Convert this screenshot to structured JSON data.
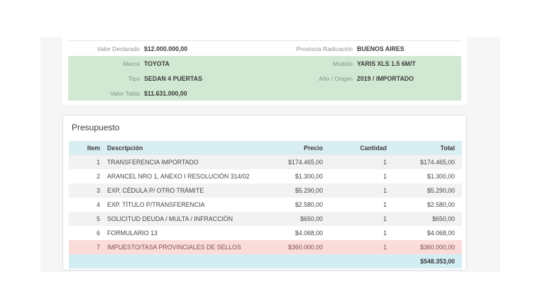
{
  "info_panel": {
    "rows": [
      {
        "left_label": "Valor Declarado",
        "left_value": "$12.000.000,00",
        "right_label": "Provincia Radicación",
        "right_value": "BUENOS AIRES",
        "variant": "white"
      },
      {
        "left_label": "Marca",
        "left_value": "TOYOTA",
        "right_label": "Modelo",
        "right_value": "YARIS XLS 1.5 6M/T",
        "variant": "green"
      },
      {
        "left_label": "Tipo",
        "left_value": "SEDAN 4 PUERTAS",
        "right_label": "Año / Origen",
        "right_value": "2019 / IMPORTADO",
        "variant": "green"
      },
      {
        "left_label": "Valor Tabla",
        "left_value": "$11.631.000,00",
        "right_label": "",
        "right_value": "",
        "variant": "green"
      }
    ]
  },
  "budget": {
    "title": "Presupuesto",
    "columns": [
      "Item",
      "Descripción",
      "Precio",
      "Cantidad",
      "Total"
    ],
    "rows": [
      {
        "item": "1",
        "description": "TRANSFERENCIA IMPORTADO",
        "price": "$174.465,00",
        "quantity": "1",
        "total": "$174.465,00",
        "variant": "stripe"
      },
      {
        "item": "2",
        "description": "ARANCEL NRO 1, ANEXO I RESOLUCIÓN 314/02",
        "price": "$1.300,00",
        "quantity": "1",
        "total": "$1.300,00",
        "variant": "plain"
      },
      {
        "item": "3",
        "description": "EXP. CÉDULA P/ OTRO TRÁMITE",
        "price": "$5.290,00",
        "quantity": "1",
        "total": "$5.290,00",
        "variant": "stripe"
      },
      {
        "item": "4",
        "description": "EXP. TÍTULO P/TRANSFERENCIA",
        "price": "$2.580,00",
        "quantity": "1",
        "total": "$2.580,00",
        "variant": "plain"
      },
      {
        "item": "5",
        "description": "SOLICITUD DEUDA / MULTA / INFRACCIÓN",
        "price": "$650,00",
        "quantity": "1",
        "total": "$650,00",
        "variant": "stripe"
      },
      {
        "item": "6",
        "description": "FORMULARIO 13",
        "price": "$4.068,00",
        "quantity": "1",
        "total": "$4.068,00",
        "variant": "plain"
      },
      {
        "item": "7",
        "description": "IMPUESTO/TASA PROVINCIALES DE SELLOS",
        "price": "$360.000,00",
        "quantity": "1",
        "total": "$360.000,00",
        "variant": "danger"
      }
    ],
    "grand_total": "$548.353,00"
  },
  "colors": {
    "highlight_green": "#d1e9d2",
    "header_cyan": "#d8eef3",
    "danger_pink": "#fadcda",
    "stripe_gray": "#f2f2f2",
    "app_background": "#f6f6f7"
  }
}
